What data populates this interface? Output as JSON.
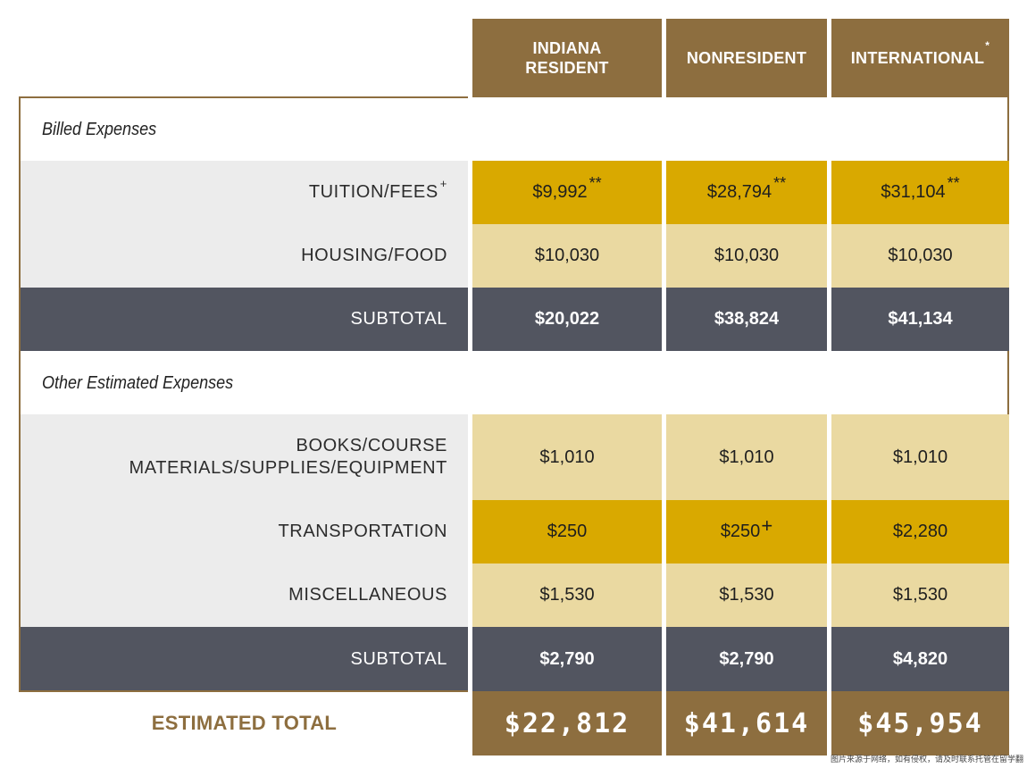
{
  "columns": [
    {
      "name": "INDIANA RESIDENT",
      "line1": "INDIANA",
      "line2": "RESIDENT"
    },
    {
      "name": "NONRESIDENT"
    },
    {
      "name": "INTERNATIONAL",
      "marker": "*"
    }
  ],
  "sections": {
    "billed": "Billed Expenses",
    "other": "Other Estimated Expenses"
  },
  "rows": {
    "tuition": {
      "label": "TUITION/FEES",
      "marker": "+",
      "values": [
        "$9,992",
        "$28,794",
        "$31,104"
      ],
      "value_marker": "**"
    },
    "housing": {
      "label": "HOUSING/FOOD",
      "values": [
        "$10,030",
        "$10,030",
        "$10,030"
      ]
    },
    "subtotal1": {
      "label": "SUBTOTAL",
      "values": [
        "$20,022",
        "$38,824",
        "$41,134"
      ]
    },
    "books": {
      "label_line1": "BOOKS/COURSE",
      "label_line2": "MATERIALS/SUPPLIES/EQUIPMENT",
      "values": [
        "$1,010",
        "$1,010",
        "$1,010"
      ]
    },
    "transport": {
      "label": "TRANSPORTATION",
      "values": [
        "$250",
        "$250",
        "$2,280"
      ],
      "nonresident_marker": "+"
    },
    "misc": {
      "label": "MISCELLANEOUS",
      "values": [
        "$1,530",
        "$1,530",
        "$1,530"
      ]
    },
    "subtotal2": {
      "label": "SUBTOTAL",
      "values": [
        "$2,790",
        "$2,790",
        "$4,820"
      ]
    }
  },
  "total": {
    "label": "ESTIMATED TOTAL",
    "values": [
      "$22,812",
      "$41,614",
      "$45,954"
    ]
  },
  "watermark": "图片来源于网络，如有侵权，请及时联系托管在留学翻",
  "colors": {
    "brand_brown": "#8d6e3f",
    "gold_dark": "#d9a900",
    "gold_light": "#ead9a1",
    "subtotal_gray": "#525560",
    "label_gray": "#ececec"
  }
}
